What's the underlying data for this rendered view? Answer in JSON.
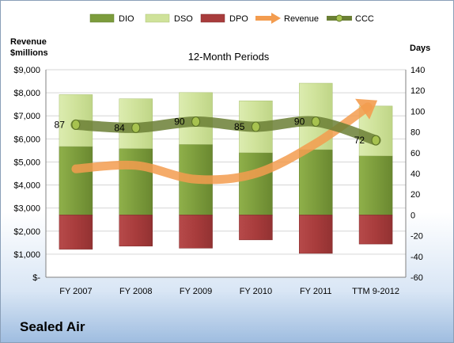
{
  "company": "Sealed Air",
  "chart_data": {
    "type": "bar",
    "subtitle": "12-Month Periods",
    "left_axis_title": [
      "Revenue",
      "$millions"
    ],
    "right_axis_title": "Days",
    "categories": [
      "FY 2007",
      "FY 2008",
      "FY 2009",
      "FY 2010",
      "FY 2011",
      "TTM 9-2012"
    ],
    "left_axis": {
      "range": [
        0,
        9000
      ],
      "ticks": [
        0,
        1000,
        2000,
        3000,
        4000,
        5000,
        6000,
        7000,
        8000,
        9000
      ],
      "tick_labels": [
        "$-",
        "$1,000",
        "$2,000",
        "$3,000",
        "$4,000",
        "$5,000",
        "$6,000",
        "$7,000",
        "$8,000",
        "$9,000"
      ]
    },
    "right_axis": {
      "range": [
        -60,
        140
      ],
      "ticks": [
        -60,
        -40,
        -20,
        0,
        20,
        40,
        60,
        80,
        100,
        120,
        140
      ],
      "tick_labels": [
        "-60",
        "-40",
        "-20",
        "0",
        "20",
        "40",
        "60",
        "80",
        "100",
        "120",
        "140"
      ]
    },
    "legend": [
      "DIO",
      "DSO",
      "DPO",
      "Revenue",
      "CCC"
    ],
    "series": [
      {
        "name": "DIO",
        "axis": "right",
        "kind": "stacked-bar",
        "color": "#7a9a3a",
        "values": [
          66,
          64,
          68,
          60,
          63,
          57
        ]
      },
      {
        "name": "DSO",
        "axis": "right",
        "kind": "stacked-bar",
        "color": "#cfe29a",
        "values": [
          50,
          48,
          50,
          50,
          64,
          48
        ]
      },
      {
        "name": "DPO",
        "axis": "right",
        "kind": "negative-bar",
        "color": "#a83c3c",
        "values": [
          -33,
          -30,
          -32,
          -24,
          -37,
          -28
        ]
      },
      {
        "name": "Revenue",
        "axis": "left",
        "kind": "arrow-line",
        "color": "#f39c4f",
        "values": [
          4700,
          4850,
          4250,
          4500,
          5800,
          7600
        ]
      },
      {
        "name": "CCC",
        "axis": "right",
        "kind": "line",
        "color": "#6b7f35",
        "values": [
          87,
          84,
          90,
          85,
          90,
          72
        ]
      }
    ],
    "ccc_labels": [
      "87",
      "84",
      "90",
      "85",
      "90",
      "72"
    ],
    "grid": true,
    "legend_position": "top"
  }
}
